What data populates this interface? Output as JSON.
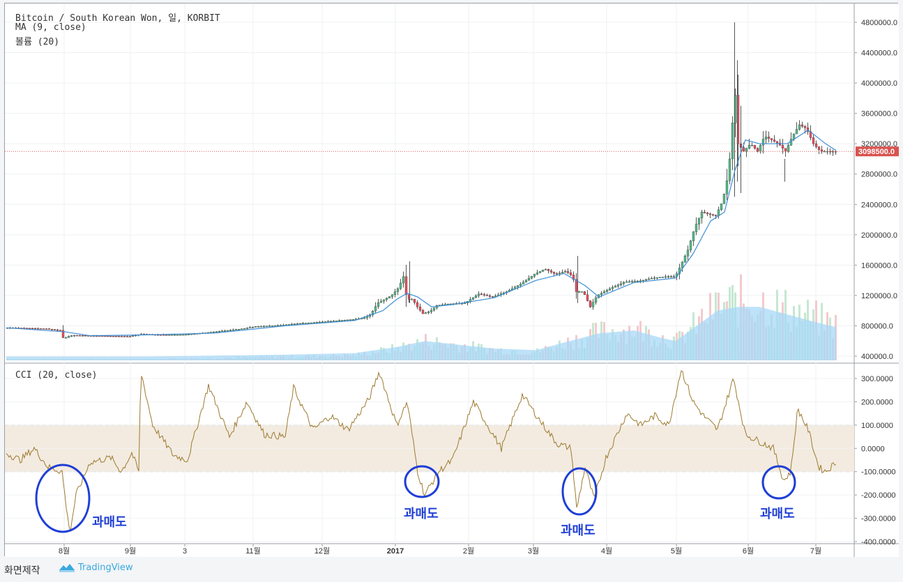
{
  "chart_data": {
    "type": "candlestick",
    "title": "Bitcoin / South Korean Won, 일, KORBIT",
    "overlay_label": "MA (9, close)",
    "volume_label": "볼륨 (20)",
    "cci_label": "CCI (20, close)",
    "price_axis": {
      "ticks": [
        "4800000.0",
        "4400000.0",
        "4000000.0",
        "3600000.0",
        "3200000.0",
        "2800000.0",
        "2400000.0",
        "2000000.0",
        "1600000.0",
        "1200000.0",
        "800000.0",
        "400000.0"
      ],
      "ylim": [
        350000,
        4900000
      ]
    },
    "last_price": "3098500.0",
    "cci_axis": {
      "ticks": [
        "300.0000",
        "200.0000",
        "100.0000",
        "0.0000",
        "-100.0000",
        "-200.0000",
        "-300.0000",
        "-400.0000"
      ],
      "ylim": [
        -400,
        340
      ],
      "band": [
        -100,
        100
      ]
    },
    "time_axis": [
      "8월",
      "9월",
      "3",
      "11월",
      "12월",
      "2017",
      "2월",
      "3월",
      "4월",
      "5월",
      "6월",
      "7월"
    ],
    "price_path": [
      [
        0,
        775000
      ],
      [
        30,
        770000
      ],
      [
        60,
        760000
      ],
      [
        80,
        740000
      ],
      [
        85,
        620000
      ],
      [
        90,
        660000
      ],
      [
        100,
        675000
      ],
      [
        150,
        665000
      ],
      [
        180,
        660000
      ],
      [
        195,
        690000
      ],
      [
        230,
        680000
      ],
      [
        260,
        685000
      ],
      [
        290,
        710000
      ],
      [
        320,
        740000
      ],
      [
        340,
        760000
      ],
      [
        360,
        790000
      ],
      [
        380,
        800000
      ],
      [
        400,
        810000
      ],
      [
        420,
        830000
      ],
      [
        440,
        840000
      ],
      [
        460,
        855000
      ],
      [
        480,
        870000
      ],
      [
        500,
        885000
      ],
      [
        515,
        900000
      ],
      [
        525,
        950000
      ],
      [
        535,
        1100000
      ],
      [
        545,
        1150000
      ],
      [
        555,
        1200000
      ],
      [
        565,
        1300000
      ],
      [
        572,
        1450000
      ],
      [
        577,
        1150000
      ],
      [
        585,
        1150000
      ],
      [
        592,
        1050000
      ],
      [
        600,
        960000
      ],
      [
        610,
        990000
      ],
      [
        620,
        1070000
      ],
      [
        640,
        1090000
      ],
      [
        660,
        1100000
      ],
      [
        680,
        1220000
      ],
      [
        700,
        1180000
      ],
      [
        720,
        1250000
      ],
      [
        740,
        1350000
      ],
      [
        760,
        1480000
      ],
      [
        775,
        1550000
      ],
      [
        790,
        1480000
      ],
      [
        805,
        1520000
      ],
      [
        815,
        1450000
      ],
      [
        820,
        1250000
      ],
      [
        830,
        1250000
      ],
      [
        840,
        1050000
      ],
      [
        850,
        1200000
      ],
      [
        870,
        1300000
      ],
      [
        890,
        1380000
      ],
      [
        910,
        1390000
      ],
      [
        930,
        1430000
      ],
      [
        950,
        1450000
      ],
      [
        962,
        1450000
      ],
      [
        970,
        1600000
      ],
      [
        980,
        1800000
      ],
      [
        990,
        2100000
      ],
      [
        1000,
        2300000
      ],
      [
        1010,
        2270000
      ],
      [
        1020,
        2250000
      ],
      [
        1030,
        2450000
      ],
      [
        1038,
        2800000
      ],
      [
        1043,
        3300000
      ],
      [
        1047,
        4000000
      ],
      [
        1052,
        3200000
      ],
      [
        1060,
        3100000
      ],
      [
        1070,
        3200000
      ],
      [
        1080,
        3100000
      ],
      [
        1090,
        3300000
      ],
      [
        1100,
        3250000
      ],
      [
        1110,
        3200000
      ],
      [
        1120,
        3100000
      ],
      [
        1130,
        3300000
      ],
      [
        1140,
        3450000
      ],
      [
        1150,
        3400000
      ],
      [
        1160,
        3200000
      ],
      [
        1170,
        3100000
      ],
      [
        1180,
        3100000
      ],
      [
        1190,
        3098500
      ]
    ],
    "ma_path": [
      [
        0,
        775000
      ],
      [
        85,
        720000
      ],
      [
        120,
        670000
      ],
      [
        200,
        680000
      ],
      [
        300,
        705000
      ],
      [
        400,
        800000
      ],
      [
        500,
        870000
      ],
      [
        540,
        1000000
      ],
      [
        560,
        1150000
      ],
      [
        575,
        1230000
      ],
      [
        590,
        1180000
      ],
      [
        610,
        1050000
      ],
      [
        640,
        1080000
      ],
      [
        700,
        1170000
      ],
      [
        760,
        1400000
      ],
      [
        800,
        1490000
      ],
      [
        830,
        1330000
      ],
      [
        850,
        1180000
      ],
      [
        900,
        1370000
      ],
      [
        960,
        1430000
      ],
      [
        985,
        1750000
      ],
      [
        1010,
        2180000
      ],
      [
        1030,
        2300000
      ],
      [
        1045,
        2850000
      ],
      [
        1060,
        3250000
      ],
      [
        1080,
        3200000
      ],
      [
        1120,
        3200000
      ],
      [
        1150,
        3380000
      ],
      [
        1175,
        3200000
      ],
      [
        1190,
        3110000
      ]
    ],
    "volume_ma_path": [
      [
        0,
        395000
      ],
      [
        200,
        395000
      ],
      [
        400,
        420000
      ],
      [
        500,
        440000
      ],
      [
        560,
        520000
      ],
      [
        600,
        600000
      ],
      [
        640,
        560000
      ],
      [
        700,
        500000
      ],
      [
        760,
        480000
      ],
      [
        800,
        580000
      ],
      [
        850,
        700000
      ],
      [
        900,
        740000
      ],
      [
        940,
        640000
      ],
      [
        960,
        600000
      ],
      [
        990,
        800000
      ],
      [
        1020,
        1000000
      ],
      [
        1050,
        1050000
      ],
      [
        1080,
        1050000
      ],
      [
        1120,
        950000
      ],
      [
        1160,
        850000
      ],
      [
        1190,
        780000
      ]
    ],
    "cci_path": [
      [
        0,
        -20
      ],
      [
        20,
        -50
      ],
      [
        40,
        0
      ],
      [
        60,
        -80
      ],
      [
        80,
        -100
      ],
      [
        88,
        -300
      ],
      [
        92,
        -350
      ],
      [
        100,
        -200
      ],
      [
        120,
        -60
      ],
      [
        150,
        -40
      ],
      [
        165,
        -100
      ],
      [
        180,
        -20
      ],
      [
        190,
        -100
      ],
      [
        193,
        330
      ],
      [
        210,
        100
      ],
      [
        240,
        -30
      ],
      [
        260,
        -50
      ],
      [
        290,
        270
      ],
      [
        320,
        50
      ],
      [
        345,
        200
      ],
      [
        370,
        60
      ],
      [
        400,
        50
      ],
      [
        412,
        260
      ],
      [
        440,
        80
      ],
      [
        465,
        140
      ],
      [
        490,
        80
      ],
      [
        520,
        210
      ],
      [
        535,
        330
      ],
      [
        560,
        100
      ],
      [
        575,
        200
      ],
      [
        590,
        -100
      ],
      [
        600,
        -200
      ],
      [
        620,
        -100
      ],
      [
        640,
        -50
      ],
      [
        670,
        200
      ],
      [
        690,
        100
      ],
      [
        710,
        0
      ],
      [
        740,
        230
      ],
      [
        770,
        100
      ],
      [
        790,
        20
      ],
      [
        810,
        0
      ],
      [
        818,
        -260
      ],
      [
        830,
        -80
      ],
      [
        843,
        -220
      ],
      [
        860,
        -40
      ],
      [
        890,
        150
      ],
      [
        910,
        100
      ],
      [
        930,
        140
      ],
      [
        950,
        100
      ],
      [
        968,
        340
      ],
      [
        985,
        200
      ],
      [
        1000,
        140
      ],
      [
        1020,
        80
      ],
      [
        1043,
        300
      ],
      [
        1060,
        60
      ],
      [
        1080,
        30
      ],
      [
        1100,
        0
      ],
      [
        1115,
        -140
      ],
      [
        1125,
        -100
      ],
      [
        1135,
        170
      ],
      [
        1150,
        80
      ],
      [
        1165,
        -80
      ],
      [
        1175,
        -100
      ],
      [
        1190,
        -60
      ]
    ]
  },
  "annotations": [
    {
      "label": "과매도"
    },
    {
      "label": "과매도"
    },
    {
      "label": "과매도"
    },
    {
      "label": "과매도"
    }
  ],
  "colors": {
    "up": "#53b987",
    "down": "#eb4d5c",
    "ma": "#3d8ed6",
    "volume_ma": "#a7d8f7",
    "cci": "#9c7a2f",
    "band": "#f3ebe0",
    "annotation": "#1f3fd6",
    "last_price_bg": "#d9534f"
  },
  "footer": {
    "left_text": "화면제작",
    "brand": "TradingView"
  },
  "icons": [
    "tradingview-logo-icon"
  ]
}
